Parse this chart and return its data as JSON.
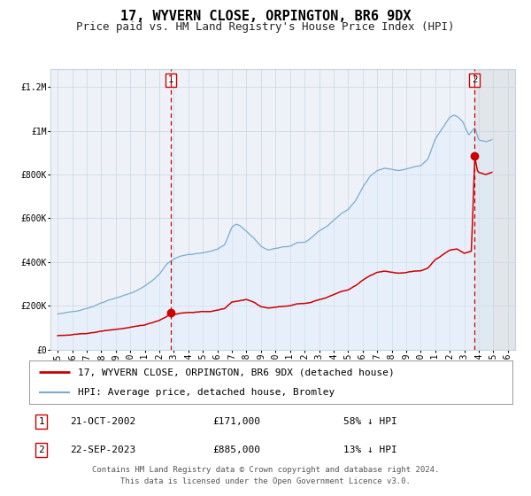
{
  "title": "17, WYVERN CLOSE, ORPINGTON, BR6 9DX",
  "subtitle": "Price paid vs. HM Land Registry's House Price Index (HPI)",
  "legend_line1": "17, WYVERN CLOSE, ORPINGTON, BR6 9DX (detached house)",
  "legend_line2": "HPI: Average price, detached house, Bromley",
  "footer1": "Contains HM Land Registry data © Crown copyright and database right 2024.",
  "footer2": "This data is licensed under the Open Government Licence v3.0.",
  "annotation1_label": "1",
  "annotation1_date": "21-OCT-2002",
  "annotation1_price": "£171,000",
  "annotation1_hpi": "58% ↓ HPI",
  "annotation2_label": "2",
  "annotation2_date": "22-SEP-2023",
  "annotation2_price": "£885,000",
  "annotation2_hpi": "13% ↓ HPI",
  "xlim": [
    1994.5,
    2026.5
  ],
  "ylim": [
    0,
    1280000
  ],
  "yticks": [
    0,
    200000,
    400000,
    600000,
    800000,
    1000000,
    1200000
  ],
  "ytick_labels": [
    "£0",
    "£200K",
    "£400K",
    "£600K",
    "£800K",
    "£1M",
    "£1.2M"
  ],
  "xticks": [
    1995,
    1996,
    1997,
    1998,
    1999,
    2000,
    2001,
    2002,
    2003,
    2004,
    2005,
    2006,
    2007,
    2008,
    2009,
    2010,
    2011,
    2012,
    2013,
    2014,
    2015,
    2016,
    2017,
    2018,
    2019,
    2020,
    2021,
    2022,
    2023,
    2024,
    2025,
    2026
  ],
  "vline1_x": 2002.8,
  "vline2_x": 2023.72,
  "marker1_x": 2002.8,
  "marker1_y": 171000,
  "marker2_x": 2023.72,
  "marker2_y": 885000,
  "red_color": "#cc0000",
  "blue_color": "#7aaccc",
  "blue_fill": "#ddeeff",
  "bg_color": "#eef2f8",
  "grid_color": "#c8d4e0",
  "vline_color": "#cc0000",
  "shade_color": "#c8c8c8",
  "shade_alpha": 0.3,
  "title_fontsize": 11,
  "subtitle_fontsize": 9,
  "axis_fontsize": 7,
  "legend_fontsize": 8,
  "annotation_fontsize": 8,
  "footer_fontsize": 6.5,
  "hpi_anchors_t": [
    1995.0,
    1995.5,
    1996.0,
    1996.5,
    1997.0,
    1997.5,
    1998.0,
    1998.5,
    1999.0,
    1999.5,
    2000.0,
    2000.5,
    2001.0,
    2001.5,
    2002.0,
    2002.5,
    2003.0,
    2003.5,
    2004.0,
    2004.5,
    2005.0,
    2005.5,
    2006.0,
    2006.5,
    2007.0,
    2007.3,
    2007.6,
    2008.0,
    2008.5,
    2009.0,
    2009.5,
    2010.0,
    2010.5,
    2011.0,
    2011.5,
    2012.0,
    2012.5,
    2013.0,
    2013.5,
    2014.0,
    2014.5,
    2015.0,
    2015.5,
    2016.0,
    2016.5,
    2017.0,
    2017.5,
    2018.0,
    2018.5,
    2019.0,
    2019.5,
    2020.0,
    2020.5,
    2021.0,
    2021.5,
    2022.0,
    2022.3,
    2022.6,
    2022.9,
    2023.3,
    2023.72,
    2024.0,
    2024.5,
    2024.9
  ],
  "hpi_anchors_v": [
    160000,
    165000,
    172000,
    180000,
    190000,
    200000,
    215000,
    228000,
    238000,
    248000,
    258000,
    272000,
    290000,
    315000,
    345000,
    390000,
    415000,
    430000,
    435000,
    438000,
    442000,
    448000,
    460000,
    480000,
    560000,
    575000,
    565000,
    540000,
    510000,
    470000,
    455000,
    460000,
    468000,
    472000,
    490000,
    490000,
    510000,
    540000,
    560000,
    590000,
    620000,
    640000,
    680000,
    740000,
    790000,
    820000,
    830000,
    825000,
    818000,
    825000,
    835000,
    840000,
    870000,
    960000,
    1010000,
    1060000,
    1070000,
    1060000,
    1040000,
    980000,
    1015000,
    960000,
    950000,
    960000
  ],
  "red_anchors_t": [
    1995.0,
    1995.5,
    1996.0,
    1996.5,
    1997.0,
    1997.5,
    1998.0,
    1998.5,
    1999.0,
    1999.5,
    2000.0,
    2000.5,
    2001.0,
    2001.5,
    2002.0,
    2002.5,
    2002.8,
    2003.0,
    2003.5,
    2004.0,
    2004.5,
    2005.0,
    2005.5,
    2006.0,
    2006.5,
    2007.0,
    2007.5,
    2008.0,
    2008.5,
    2009.0,
    2009.5,
    2010.0,
    2010.5,
    2011.0,
    2011.5,
    2012.0,
    2012.5,
    2013.0,
    2013.5,
    2014.0,
    2014.5,
    2015.0,
    2015.5,
    2016.0,
    2016.5,
    2017.0,
    2017.5,
    2018.0,
    2018.5,
    2019.0,
    2019.5,
    2020.0,
    2020.5,
    2021.0,
    2021.5,
    2022.0,
    2022.5,
    2023.0,
    2023.5,
    2023.72,
    2023.9,
    2024.0,
    2024.5,
    2024.9
  ],
  "red_anchors_v": [
    62000,
    64000,
    67000,
    70000,
    74000,
    78000,
    84000,
    89000,
    93000,
    97000,
    101000,
    106000,
    113000,
    123000,
    135000,
    152000,
    171000,
    162000,
    168000,
    170000,
    172000,
    173000,
    175000,
    180000,
    188000,
    218000,
    224000,
    230000,
    218000,
    198000,
    192000,
    195000,
    199000,
    201000,
    210000,
    210000,
    218000,
    229000,
    237000,
    251000,
    265000,
    273000,
    291000,
    317000,
    337000,
    351000,
    358000,
    354000,
    350000,
    354000,
    358000,
    360000,
    373000,
    412000,
    433000,
    455000,
    460000,
    440000,
    450000,
    885000,
    820000,
    810000,
    800000,
    810000
  ]
}
